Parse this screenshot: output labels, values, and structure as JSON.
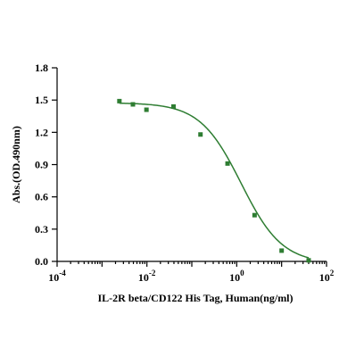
{
  "chart_data": {
    "type": "scatter",
    "title": "",
    "xlabel": "IL-2R beta/CD122 His Tag, Human(ng/ml)",
    "ylabel": "Abs.(OD.490nm)",
    "x_scale": "log",
    "xlim": [
      0.0001,
      100
    ],
    "ylim": [
      0,
      1.8
    ],
    "grid": false,
    "x_ticks": [
      {
        "value": 0.0001,
        "base": "10",
        "exp": "-4"
      },
      {
        "value": 0.01,
        "base": "10",
        "exp": "-2"
      },
      {
        "value": 1,
        "base": "10",
        "exp": "0"
      },
      {
        "value": 100,
        "base": "10",
        "exp": "2"
      }
    ],
    "y_ticks": [
      "0.0",
      "0.3",
      "0.6",
      "0.9",
      "1.2",
      "1.5",
      "1.8"
    ],
    "series": [
      {
        "color": "#2e7d32",
        "marker": "square",
        "fit": "4PL sigmoid",
        "points": [
          {
            "x": 0.00244,
            "y": 1.49
          },
          {
            "x": 0.00488,
            "y": 1.46
          },
          {
            "x": 0.00977,
            "y": 1.41
          },
          {
            "x": 0.0391,
            "y": 1.44
          },
          {
            "x": 0.156,
            "y": 1.18
          },
          {
            "x": 0.625,
            "y": 0.91
          },
          {
            "x": 2.5,
            "y": 0.43
          },
          {
            "x": 10,
            "y": 0.1
          },
          {
            "x": 40,
            "y": 0.01
          }
        ],
        "curve": {
          "top": 1.475,
          "bottom": -0.02,
          "ec50": 1.25,
          "hill": 0.95
        }
      }
    ]
  }
}
